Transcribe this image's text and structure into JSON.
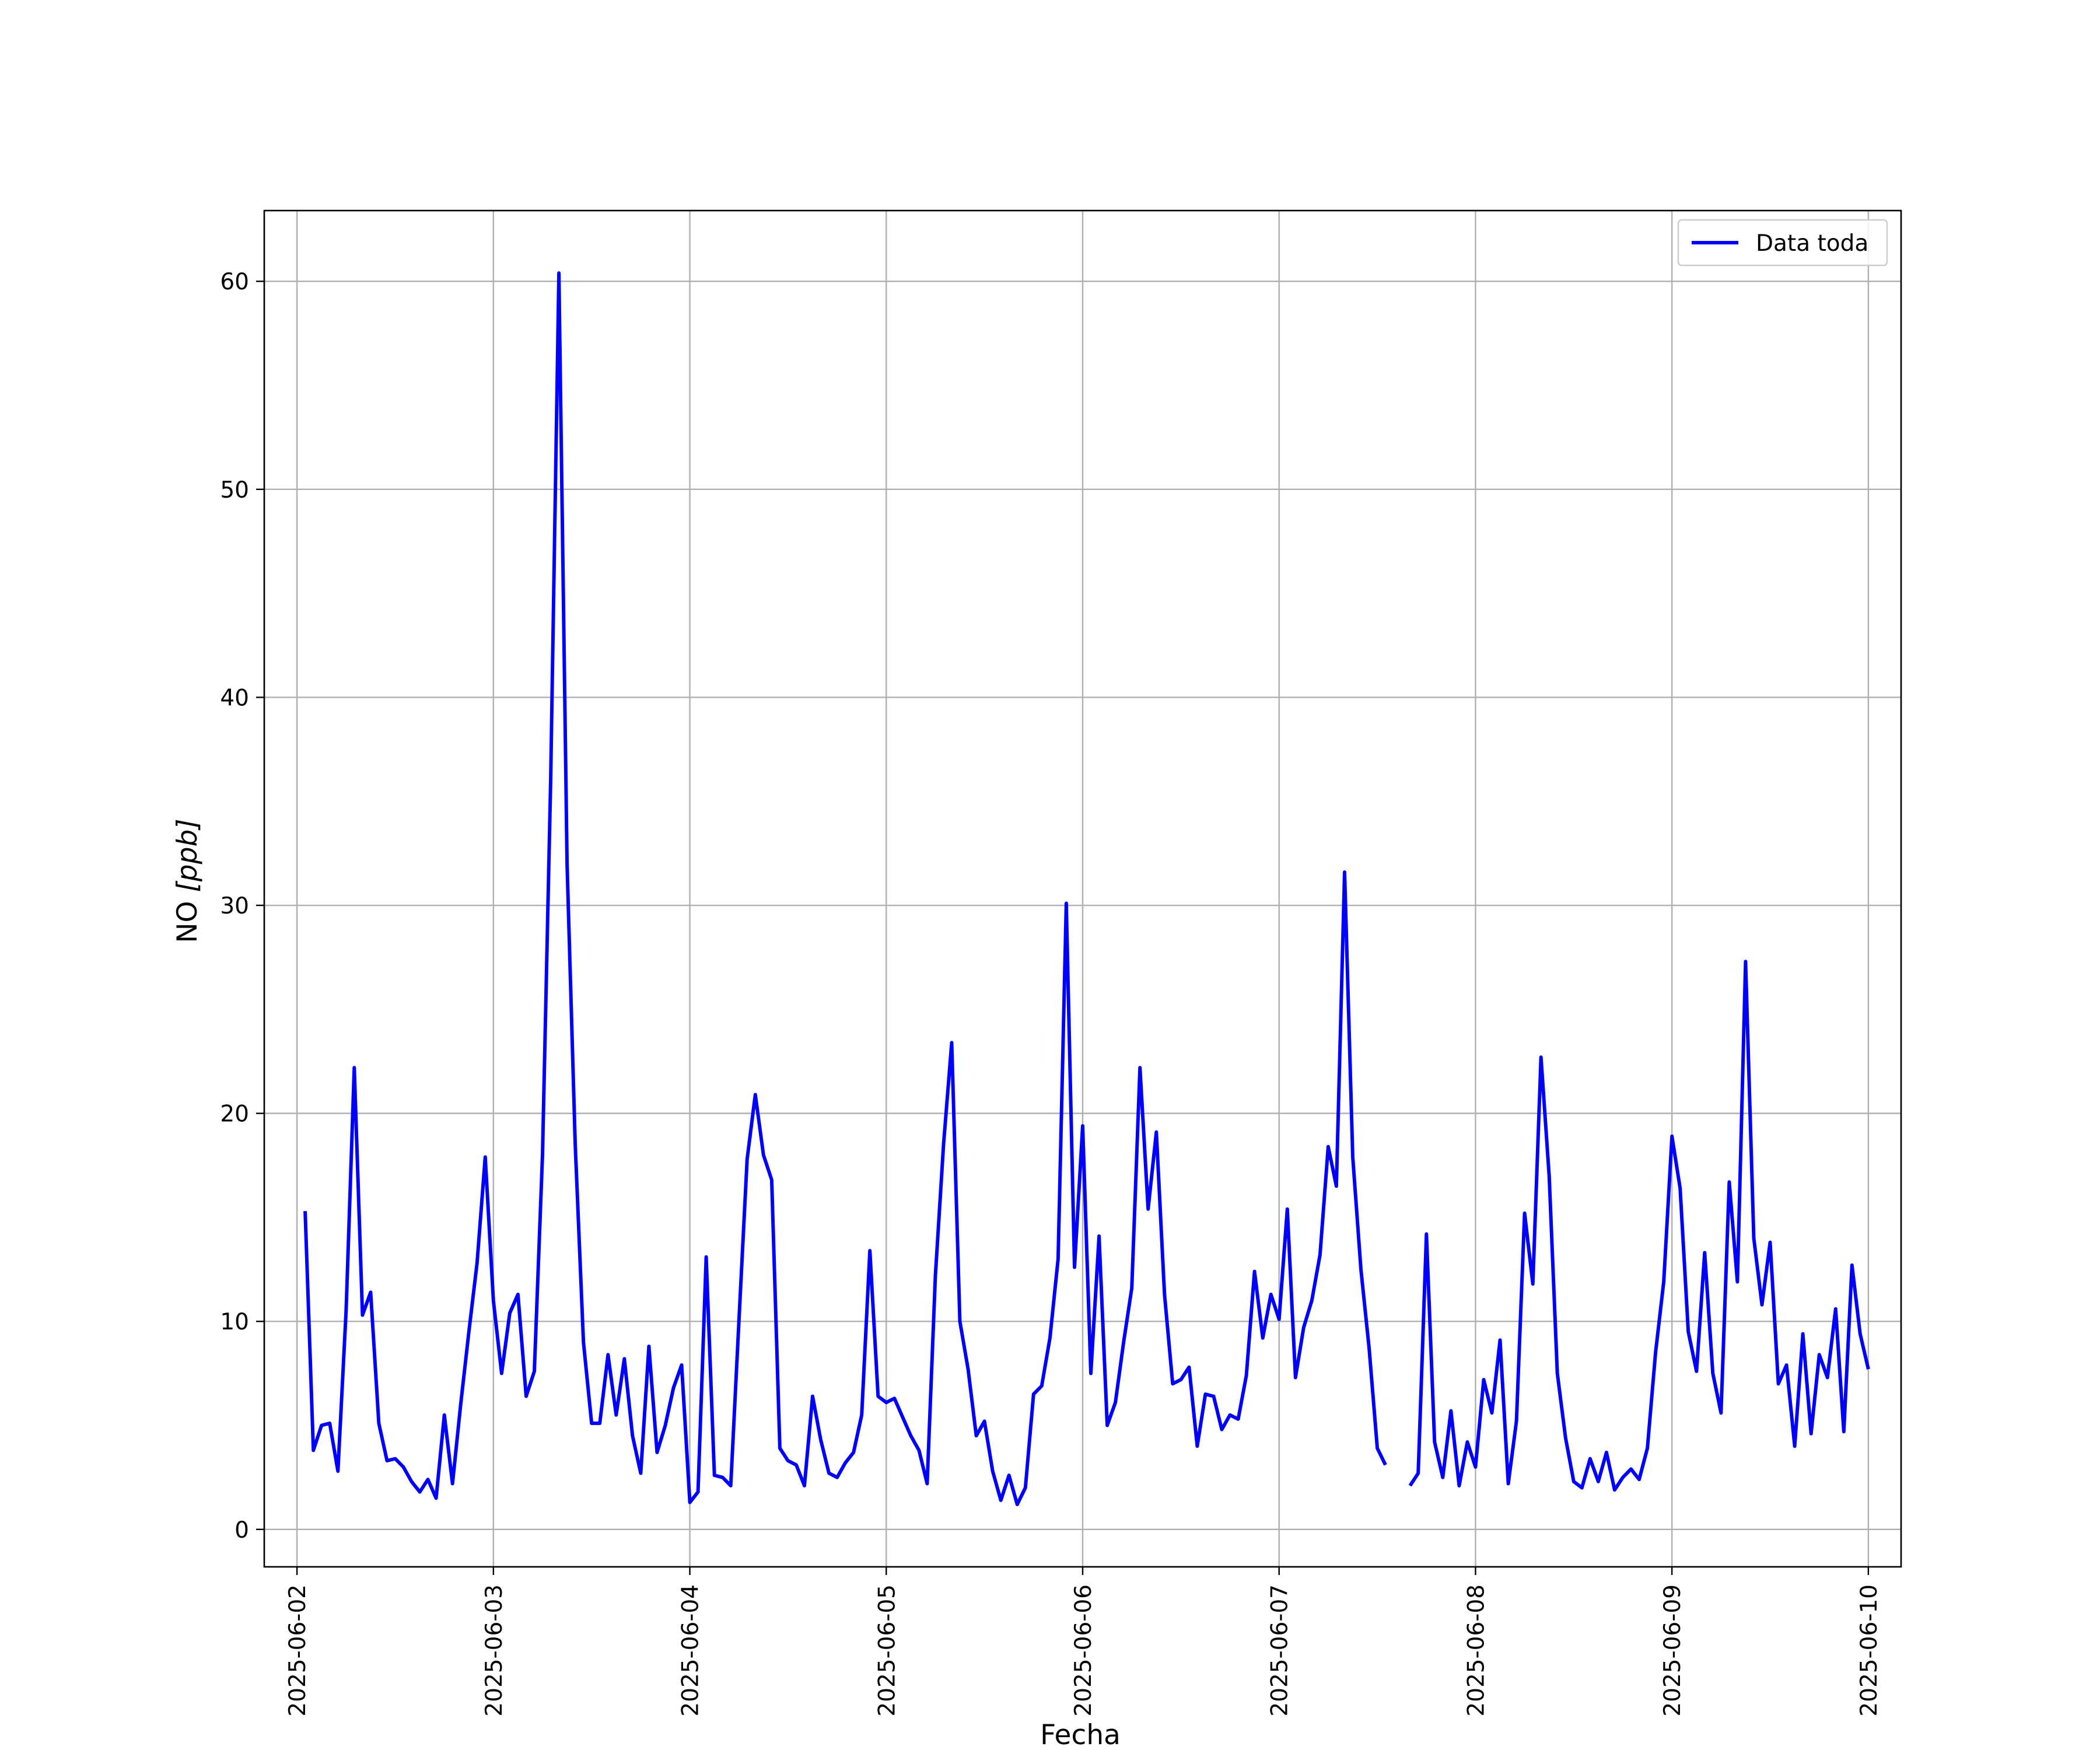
{
  "chart_data": {
    "type": "line",
    "title": "",
    "xlabel": "Fecha",
    "ylabel_main": "NO ",
    "ylabel_unit": "[ppb]",
    "x_range": [
      "2025-06-01T20:00",
      "2025-06-10T04:00"
    ],
    "ylim": [
      -1.8,
      63.4
    ],
    "x_ticks": [
      "2025-06-02",
      "2025-06-03",
      "2025-06-04",
      "2025-06-05",
      "2025-06-06",
      "2025-06-07",
      "2025-06-08",
      "2025-06-09",
      "2025-06-10"
    ],
    "y_ticks": [
      0,
      10,
      20,
      30,
      40,
      50,
      60
    ],
    "y_tick_labels": [
      "0",
      "10",
      "20",
      "30",
      "40",
      "50",
      "60"
    ],
    "grid": true,
    "legend_position": "top-right",
    "colors": {
      "series": "#0000ff",
      "grid": "#b0b0b0"
    },
    "series": [
      {
        "name": "Data toda",
        "points": [
          [
            "2025-06-02 01:00",
            15.3
          ],
          [
            "2025-06-02 02:00",
            3.8
          ],
          [
            "2025-06-02 03:00",
            5.0
          ],
          [
            "2025-06-02 04:00",
            5.1
          ],
          [
            "2025-06-02 05:00",
            2.8
          ],
          [
            "2025-06-02 06:00",
            10.5
          ],
          [
            "2025-06-02 07:00",
            22.2
          ],
          [
            "2025-06-02 08:00",
            10.3
          ],
          [
            "2025-06-02 09:00",
            11.4
          ],
          [
            "2025-06-02 10:00",
            5.1
          ],
          [
            "2025-06-02 11:00",
            3.3
          ],
          [
            "2025-06-02 12:00",
            3.4
          ],
          [
            "2025-06-02 13:00",
            3.0
          ],
          [
            "2025-06-02 14:00",
            2.3
          ],
          [
            "2025-06-02 15:00",
            1.8
          ],
          [
            "2025-06-02 16:00",
            2.4
          ],
          [
            "2025-06-02 17:00",
            1.5
          ],
          [
            "2025-06-02 18:00",
            5.5
          ],
          [
            "2025-06-02 19:00",
            2.2
          ],
          [
            "2025-06-02 20:00",
            6.0
          ],
          [
            "2025-06-02 21:00",
            9.5
          ],
          [
            "2025-06-02 22:00",
            12.8
          ],
          [
            "2025-06-02 23:00",
            17.9
          ],
          [
            "2025-06-03 00:00",
            11.0
          ],
          [
            "2025-06-03 01:00",
            7.5
          ],
          [
            "2025-06-03 02:00",
            10.4
          ],
          [
            "2025-06-03 03:00",
            11.3
          ],
          [
            "2025-06-03 04:00",
            6.4
          ],
          [
            "2025-06-03 05:00",
            7.6
          ],
          [
            "2025-06-03 06:00",
            18.0
          ],
          [
            "2025-06-03 07:00",
            36.0
          ],
          [
            "2025-06-03 08:00",
            60.4
          ],
          [
            "2025-06-03 09:00",
            32.0
          ],
          [
            "2025-06-03 10:00",
            18.5
          ],
          [
            "2025-06-03 11:00",
            9.0
          ],
          [
            "2025-06-03 12:00",
            5.1
          ],
          [
            "2025-06-03 13:00",
            5.1
          ],
          [
            "2025-06-03 14:00",
            8.4
          ],
          [
            "2025-06-03 15:00",
            5.5
          ],
          [
            "2025-06-03 16:00",
            8.2
          ],
          [
            "2025-06-03 17:00",
            4.5
          ],
          [
            "2025-06-03 18:00",
            2.7
          ],
          [
            "2025-06-03 19:00",
            8.8
          ],
          [
            "2025-06-03 20:00",
            3.7
          ],
          [
            "2025-06-03 21:00",
            5.0
          ],
          [
            "2025-06-03 22:00",
            6.8
          ],
          [
            "2025-06-03 23:00",
            7.9
          ],
          [
            "2025-06-04 00:00",
            1.3
          ],
          [
            "2025-06-04 01:00",
            1.8
          ],
          [
            "2025-06-04 02:00",
            13.1
          ],
          [
            "2025-06-04 03:00",
            2.6
          ],
          [
            "2025-06-04 04:00",
            2.5
          ],
          [
            "2025-06-04 05:00",
            2.1
          ],
          [
            "2025-06-04 06:00",
            10.0
          ],
          [
            "2025-06-04 07:00",
            17.8
          ],
          [
            "2025-06-04 08:00",
            20.9
          ],
          [
            "2025-06-04 09:00",
            18.0
          ],
          [
            "2025-06-04 10:00",
            16.8
          ],
          [
            "2025-06-04 11:00",
            3.9
          ],
          [
            "2025-06-04 12:00",
            3.3
          ],
          [
            "2025-06-04 13:00",
            3.1
          ],
          [
            "2025-06-04 14:00",
            2.1
          ],
          [
            "2025-06-04 15:00",
            6.4
          ],
          [
            "2025-06-04 16:00",
            4.3
          ],
          [
            "2025-06-04 17:00",
            2.7
          ],
          [
            "2025-06-04 18:00",
            2.5
          ],
          [
            "2025-06-04 19:00",
            3.2
          ],
          [
            "2025-06-04 20:00",
            3.7
          ],
          [
            "2025-06-04 21:00",
            5.5
          ],
          [
            "2025-06-04 22:00",
            13.4
          ],
          [
            "2025-06-04 23:00",
            6.4
          ],
          [
            "2025-06-05 00:00",
            6.1
          ],
          [
            "2025-06-05 01:00",
            6.3
          ],
          [
            "2025-06-05 02:00",
            5.4
          ],
          [
            "2025-06-05 03:00",
            4.5
          ],
          [
            "2025-06-05 04:00",
            3.8
          ],
          [
            "2025-06-05 05:00",
            2.2
          ],
          [
            "2025-06-05 06:00",
            12.2
          ],
          [
            "2025-06-05 07:00",
            18.5
          ],
          [
            "2025-06-05 08:00",
            23.4
          ],
          [
            "2025-06-05 09:00",
            10.0
          ],
          [
            "2025-06-05 10:00",
            7.7
          ],
          [
            "2025-06-05 11:00",
            4.5
          ],
          [
            "2025-06-05 12:00",
            5.2
          ],
          [
            "2025-06-05 13:00",
            2.8
          ],
          [
            "2025-06-05 14:00",
            1.4
          ],
          [
            "2025-06-05 15:00",
            2.6
          ],
          [
            "2025-06-05 16:00",
            1.2
          ],
          [
            "2025-06-05 17:00",
            2.0
          ],
          [
            "2025-06-05 18:00",
            6.5
          ],
          [
            "2025-06-05 19:00",
            6.9
          ],
          [
            "2025-06-05 20:00",
            9.2
          ],
          [
            "2025-06-05 21:00",
            13.0
          ],
          [
            "2025-06-05 22:00",
            30.1
          ],
          [
            "2025-06-05 23:00",
            12.6
          ],
          [
            "2025-06-06 00:00",
            19.4
          ],
          [
            "2025-06-06 01:00",
            7.5
          ],
          [
            "2025-06-06 02:00",
            14.1
          ],
          [
            "2025-06-06 03:00",
            5.0
          ],
          [
            "2025-06-06 04:00",
            6.1
          ],
          [
            "2025-06-06 05:00",
            9.0
          ],
          [
            "2025-06-06 06:00",
            11.6
          ],
          [
            "2025-06-06 07:00",
            22.2
          ],
          [
            "2025-06-06 08:00",
            15.4
          ],
          [
            "2025-06-06 09:00",
            19.1
          ],
          [
            "2025-06-06 10:00",
            11.3
          ],
          [
            "2025-06-06 11:00",
            7.0
          ],
          [
            "2025-06-06 12:00",
            7.2
          ],
          [
            "2025-06-06 13:00",
            7.8
          ],
          [
            "2025-06-06 14:00",
            4.0
          ],
          [
            "2025-06-06 15:00",
            6.5
          ],
          [
            "2025-06-06 16:00",
            6.4
          ],
          [
            "2025-06-06 17:00",
            4.8
          ],
          [
            "2025-06-06 18:00",
            5.5
          ],
          [
            "2025-06-06 19:00",
            5.3
          ],
          [
            "2025-06-06 20:00",
            7.4
          ],
          [
            "2025-06-06 21:00",
            12.4
          ],
          [
            "2025-06-06 22:00",
            9.2
          ],
          [
            "2025-06-06 23:00",
            11.3
          ],
          [
            "2025-06-07 00:00",
            10.1
          ],
          [
            "2025-06-07 01:00",
            15.4
          ],
          [
            "2025-06-07 02:00",
            7.3
          ],
          [
            "2025-06-07 03:00",
            9.7
          ],
          [
            "2025-06-07 04:00",
            11.0
          ],
          [
            "2025-06-07 05:00",
            13.2
          ],
          [
            "2025-06-07 06:00",
            18.4
          ],
          [
            "2025-06-07 07:00",
            16.5
          ],
          [
            "2025-06-07 08:00",
            31.6
          ],
          [
            "2025-06-07 09:00",
            17.9
          ],
          [
            "2025-06-07 10:00",
            12.5
          ],
          [
            "2025-06-07 11:00",
            8.7
          ],
          [
            "2025-06-07 12:00",
            3.9
          ],
          [
            "2025-06-07 13:00",
            3.1
          ],
          [
            "2025-06-07 14:00",
            null
          ],
          [
            "2025-06-07 15:00",
            null
          ],
          [
            "2025-06-07 16:00",
            2.1
          ],
          [
            "2025-06-07 17:00",
            2.7
          ],
          [
            "2025-06-07 18:00",
            14.2
          ],
          [
            "2025-06-07 19:00",
            4.2
          ],
          [
            "2025-06-07 20:00",
            2.5
          ],
          [
            "2025-06-07 21:00",
            5.7
          ],
          [
            "2025-06-07 22:00",
            2.1
          ],
          [
            "2025-06-07 23:00",
            4.2
          ],
          [
            "2025-06-08 00:00",
            3.0
          ],
          [
            "2025-06-08 01:00",
            7.2
          ],
          [
            "2025-06-08 02:00",
            5.6
          ],
          [
            "2025-06-08 03:00",
            9.1
          ],
          [
            "2025-06-08 04:00",
            2.2
          ],
          [
            "2025-06-08 05:00",
            5.2
          ],
          [
            "2025-06-08 06:00",
            15.2
          ],
          [
            "2025-06-08 07:00",
            11.8
          ],
          [
            "2025-06-08 08:00",
            22.7
          ],
          [
            "2025-06-08 09:00",
            17.0
          ],
          [
            "2025-06-08 10:00",
            7.5
          ],
          [
            "2025-06-08 11:00",
            4.4
          ],
          [
            "2025-06-08 12:00",
            2.3
          ],
          [
            "2025-06-08 13:00",
            2.0
          ],
          [
            "2025-06-08 14:00",
            3.4
          ],
          [
            "2025-06-08 15:00",
            2.3
          ],
          [
            "2025-06-08 16:00",
            3.7
          ],
          [
            "2025-06-08 17:00",
            1.9
          ],
          [
            "2025-06-08 18:00",
            2.5
          ],
          [
            "2025-06-08 19:00",
            2.9
          ],
          [
            "2025-06-08 20:00",
            2.4
          ],
          [
            "2025-06-08 21:00",
            3.9
          ],
          [
            "2025-06-08 22:00",
            8.5
          ],
          [
            "2025-06-08 23:00",
            11.9
          ],
          [
            "2025-06-09 00:00",
            18.9
          ],
          [
            "2025-06-09 01:00",
            16.4
          ],
          [
            "2025-06-09 02:00",
            9.5
          ],
          [
            "2025-06-09 03:00",
            7.6
          ],
          [
            "2025-06-09 04:00",
            13.3
          ],
          [
            "2025-06-09 05:00",
            7.5
          ],
          [
            "2025-06-09 06:00",
            5.6
          ],
          [
            "2025-06-09 07:00",
            16.7
          ],
          [
            "2025-06-09 08:00",
            11.9
          ],
          [
            "2025-06-09 09:00",
            27.3
          ],
          [
            "2025-06-09 10:00",
            14.0
          ],
          [
            "2025-06-09 11:00",
            10.8
          ],
          [
            "2025-06-09 12:00",
            13.8
          ],
          [
            "2025-06-09 13:00",
            7.0
          ],
          [
            "2025-06-09 14:00",
            7.9
          ],
          [
            "2025-06-09 15:00",
            4.0
          ],
          [
            "2025-06-09 16:00",
            9.4
          ],
          [
            "2025-06-09 17:00",
            4.6
          ],
          [
            "2025-06-09 18:00",
            8.4
          ],
          [
            "2025-06-09 19:00",
            7.3
          ],
          [
            "2025-06-09 20:00",
            10.6
          ],
          [
            "2025-06-09 21:00",
            4.7
          ],
          [
            "2025-06-09 22:00",
            12.7
          ],
          [
            "2025-06-09 23:00",
            9.4
          ],
          [
            "2025-06-10 00:00",
            7.7
          ]
        ]
      }
    ]
  }
}
